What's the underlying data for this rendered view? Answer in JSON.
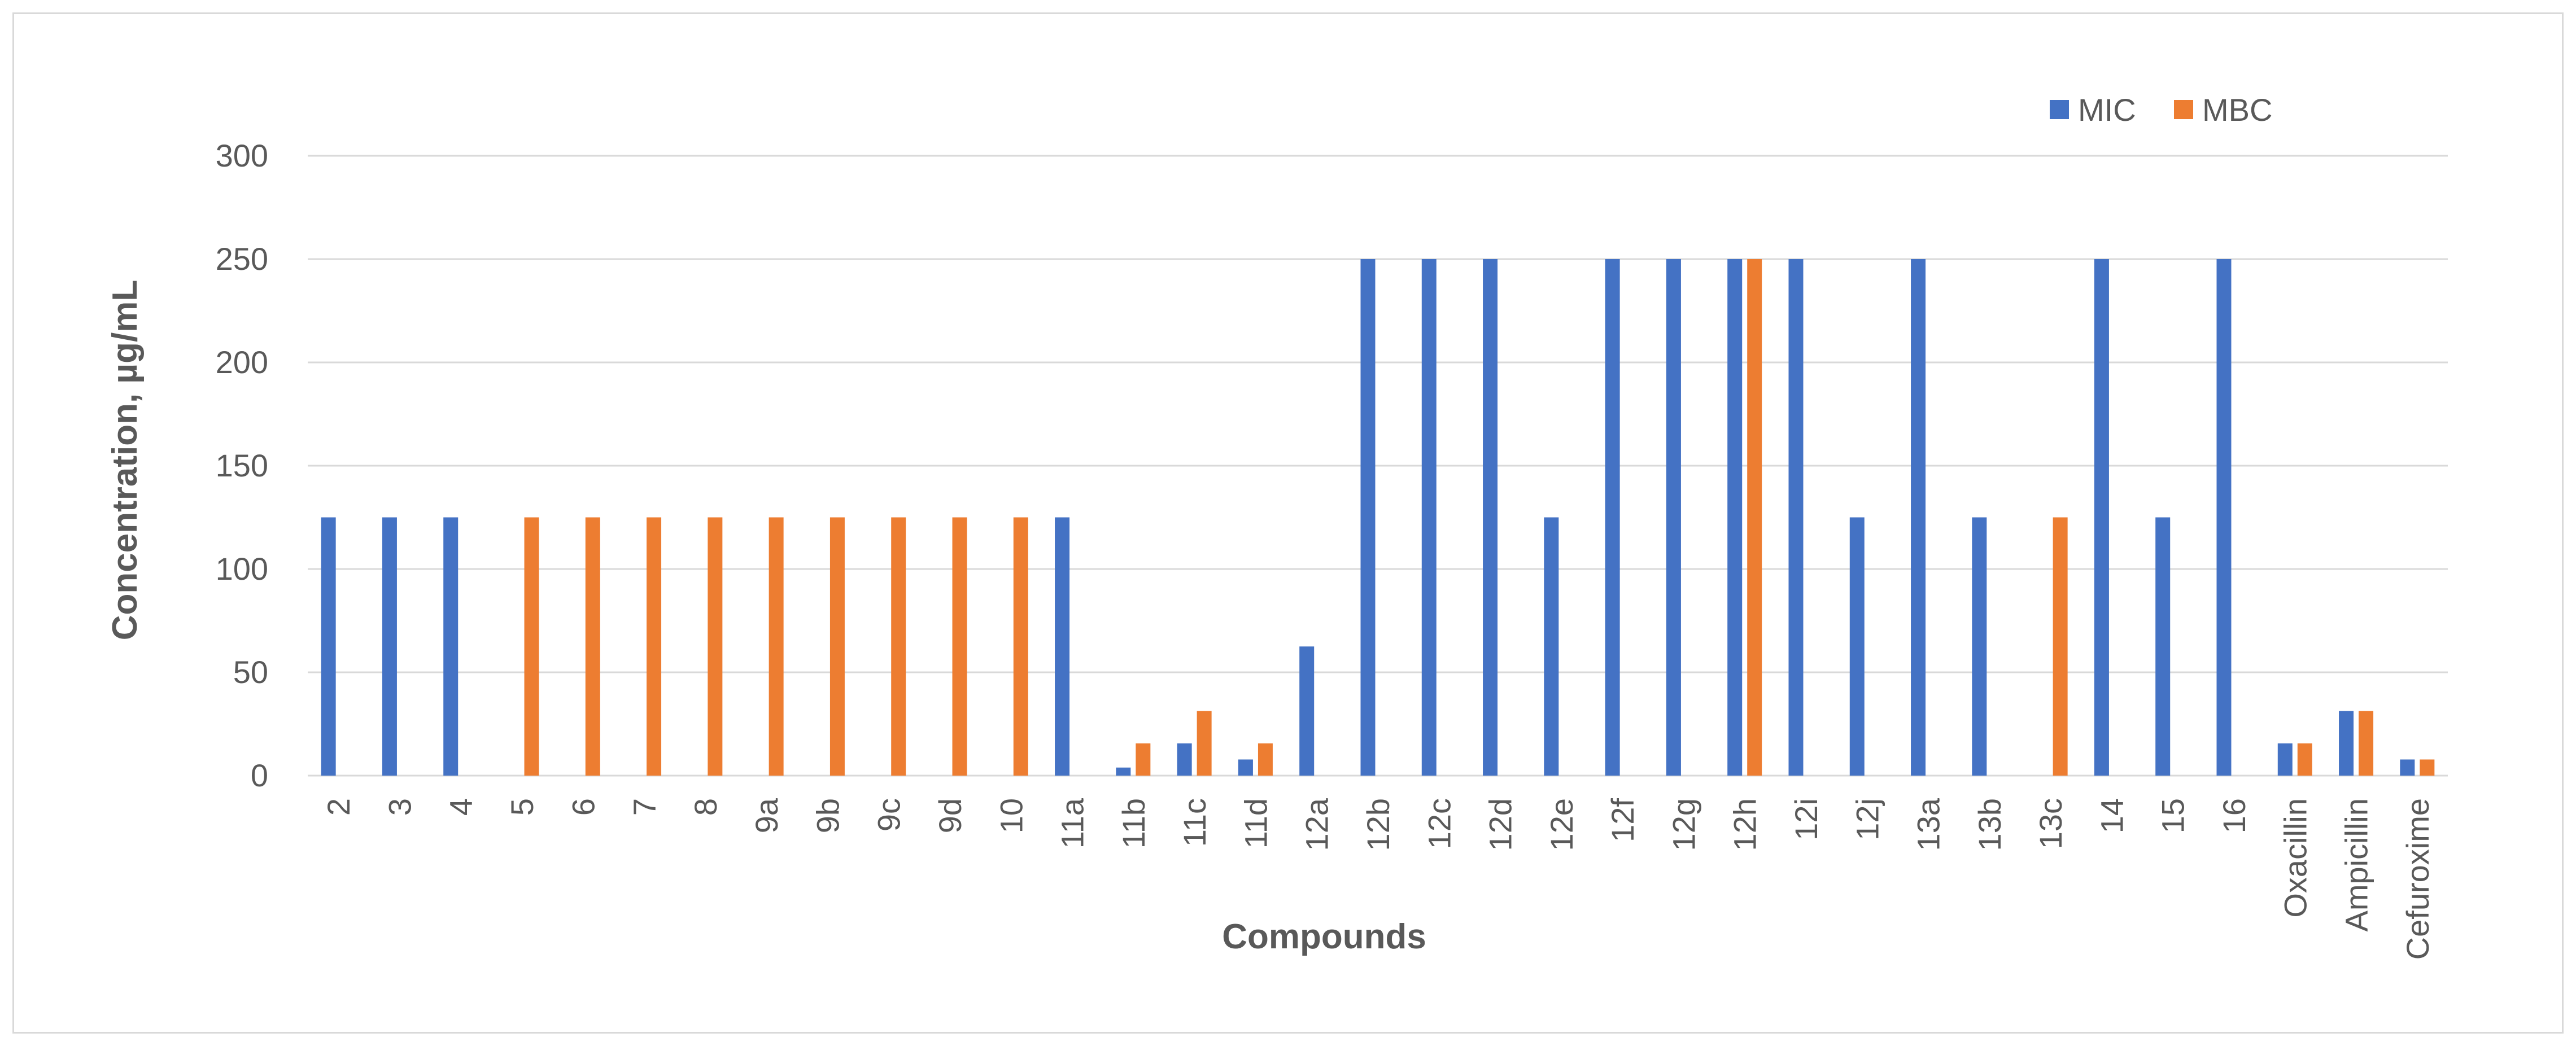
{
  "chart_data": {
    "type": "bar",
    "title": "",
    "xlabel": "Compounds",
    "ylabel": "Concentration, µg/mL",
    "ylim": [
      0,
      300
    ],
    "yticks": [
      0,
      50,
      100,
      150,
      200,
      250,
      300
    ],
    "grid": true,
    "legend_position": "top-right",
    "categories": [
      "2",
      "3",
      "4",
      "5",
      "6",
      "7",
      "8",
      "9a",
      "9b",
      "9c",
      "9d",
      "10",
      "11a",
      "11b",
      "11c",
      "11d",
      "12a",
      "12b",
      "12c",
      "12d",
      "12e",
      "12f",
      "12g",
      "12h",
      "12i",
      "12j",
      "13a",
      "13b",
      "13c",
      "14",
      "15",
      "16",
      "Oxacillin",
      "Ampicillin",
      "Cefuroxime"
    ],
    "series": [
      {
        "name": "MIC",
        "color": "#4472c4",
        "values": [
          125,
          125,
          125,
          0,
          0,
          0,
          0,
          0,
          0,
          0,
          0,
          0,
          125,
          3.9,
          15.6,
          7.8,
          62.5,
          250,
          250,
          250,
          125,
          250,
          250,
          250,
          250,
          125,
          250,
          125,
          0,
          250,
          125,
          250,
          15.6,
          31.25,
          7.8
        ]
      },
      {
        "name": "MBC",
        "color": "#ed7d31",
        "values": [
          0,
          0,
          0,
          125,
          125,
          125,
          125,
          125,
          125,
          125,
          125,
          125,
          0,
          15.6,
          31.25,
          15.6,
          0,
          0,
          0,
          0,
          0,
          0,
          0,
          250,
          0,
          0,
          0,
          0,
          125,
          0,
          0,
          0,
          15.6,
          31.25,
          7.8
        ]
      }
    ]
  }
}
